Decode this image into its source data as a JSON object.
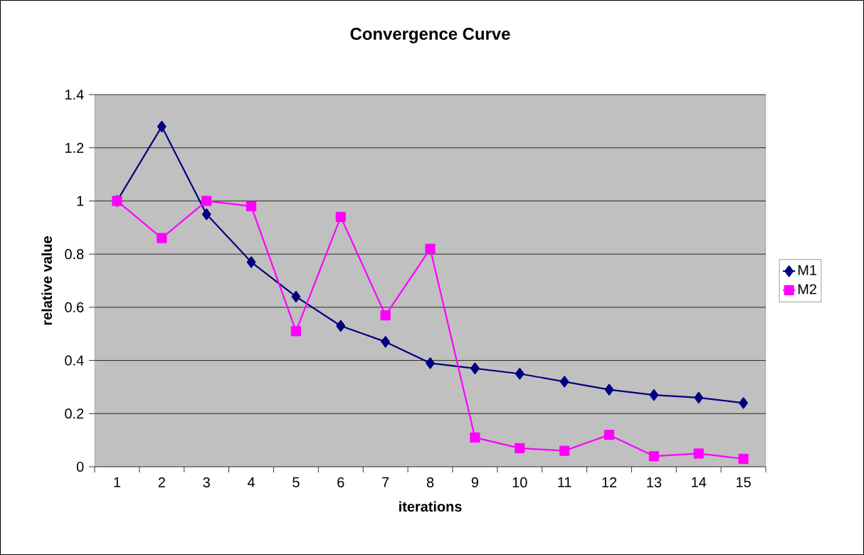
{
  "chart_data": {
    "type": "line",
    "title": "Convergence Curve",
    "xlabel": "iterations",
    "ylabel": "relative value",
    "categories": [
      "1",
      "2",
      "3",
      "4",
      "5",
      "6",
      "7",
      "8",
      "9",
      "10",
      "11",
      "12",
      "13",
      "14",
      "15"
    ],
    "series": [
      {
        "name": "M1",
        "color": "#000080",
        "marker": "diamond",
        "values": [
          1.0,
          1.28,
          0.95,
          0.77,
          0.64,
          0.53,
          0.47,
          0.39,
          0.37,
          0.35,
          0.32,
          0.29,
          0.27,
          0.26,
          0.24
        ]
      },
      {
        "name": "M2",
        "color": "#ff00ff",
        "marker": "square",
        "values": [
          1.0,
          0.86,
          1.0,
          0.98,
          0.51,
          0.94,
          0.57,
          0.82,
          0.11,
          0.07,
          0.06,
          0.12,
          0.04,
          0.05,
          0.03
        ]
      }
    ],
    "ylim": [
      0,
      1.4
    ],
    "yticks": [
      0,
      0.2,
      0.4,
      0.6,
      0.8,
      1,
      1.2,
      1.4
    ],
    "grid": "y",
    "legend": "right",
    "line_style": "solid"
  }
}
